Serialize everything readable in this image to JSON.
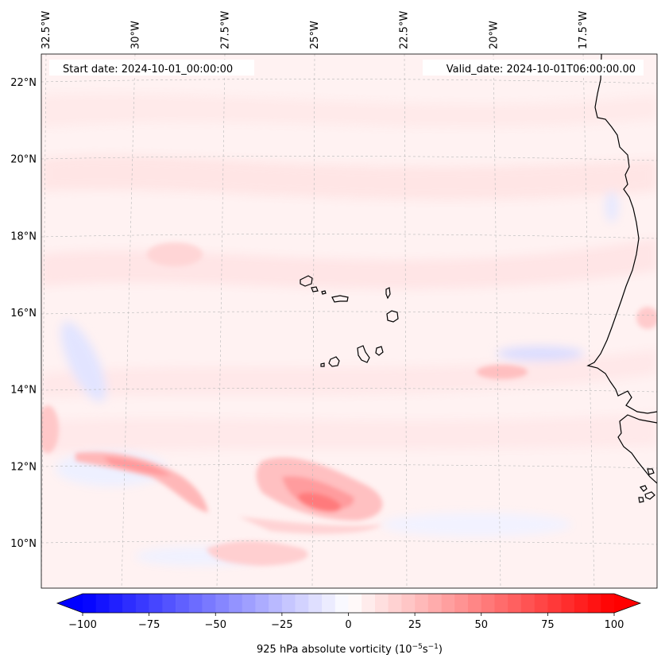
{
  "header": {
    "start_date": "Start date: 2024-10-01_00:00:00",
    "valid_date": "Valid_date: 2024-10-01T06:00:00.00"
  },
  "map": {
    "projection": "lambert-conformal",
    "lon_range": [
      -33.0,
      -15.0
    ],
    "lat_range": [
      9.0,
      22.8
    ],
    "lon_labels": [
      {
        "lon": -32.5,
        "label": "32.5°W"
      },
      {
        "lon": -30.0,
        "label": "30°W"
      },
      {
        "lon": -27.5,
        "label": "27.5°W"
      },
      {
        "lon": -25.0,
        "label": "25°W"
      },
      {
        "lon": -22.5,
        "label": "22.5°W"
      },
      {
        "lon": -20.0,
        "label": "20°W"
      },
      {
        "lon": -17.5,
        "label": "17.5°W"
      }
    ],
    "lat_labels": [
      {
        "lat": 10,
        "label": "10°N"
      },
      {
        "lat": 12,
        "label": "12°N"
      },
      {
        "lat": 14,
        "label": "14°N"
      },
      {
        "lat": 16,
        "label": "16°N"
      },
      {
        "lat": 18,
        "label": "18°N"
      },
      {
        "lat": 20,
        "label": "20°N"
      },
      {
        "lat": 22,
        "label": "22°N"
      }
    ],
    "gridlines": true,
    "coastline_color": "#000000",
    "features": [
      {
        "name": "vorticity-max-southwest-band",
        "lon": -30.5,
        "lat": 12.0,
        "value": 45
      },
      {
        "name": "vorticity-max-disturbance",
        "lon": -24.8,
        "lat": 11.0,
        "value": 60
      },
      {
        "name": "vorticity-band-south",
        "lon": -26.5,
        "lat": 9.8,
        "value": 25
      },
      {
        "name": "vorticity-max-east",
        "lon": -19.8,
        "lat": 14.5,
        "value": 28
      },
      {
        "name": "vorticity-min-east",
        "lon": -19.3,
        "lat": 15.0,
        "value": -12
      },
      {
        "name": "vorticity-min-west",
        "lon": -31.8,
        "lat": 15.0,
        "value": -15
      }
    ]
  },
  "colorbar": {
    "label": "925 hPa absolute vorticity (10",
    "label_exp1": "−5",
    "label_mid": "s",
    "label_exp2": "−1",
    "label_end": ")",
    "min": -100,
    "max": 100,
    "step": 5,
    "extend": "both",
    "ticks": [
      {
        "value": -100,
        "label": "−100"
      },
      {
        "value": -75,
        "label": "−75"
      },
      {
        "value": -50,
        "label": "−50"
      },
      {
        "value": -25,
        "label": "−25"
      },
      {
        "value": 0,
        "label": "0"
      },
      {
        "value": 25,
        "label": "25"
      },
      {
        "value": 50,
        "label": "50"
      },
      {
        "value": 75,
        "label": "75"
      },
      {
        "value": 100,
        "label": "100"
      }
    ],
    "colormap": "bwr",
    "low_color": "#0000ff",
    "mid_color": "#ffffff",
    "high_color": "#ff0000"
  }
}
